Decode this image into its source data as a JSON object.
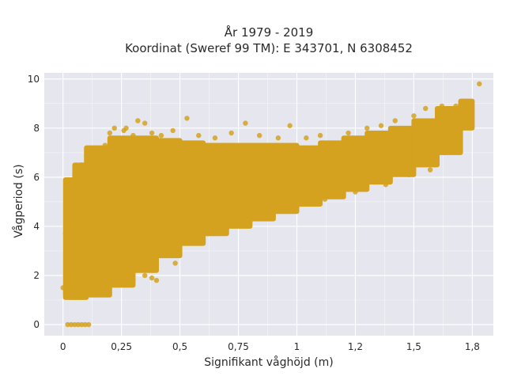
{
  "chart_data": {
    "type": "scatter",
    "title_line1": "År 1979 - 2019",
    "title_line2": "Koordinat (Sweref 99 TM): E 343701, N 6308452",
    "xlabel": "Signifikant våghöjd (m)",
    "ylabel": "Vågperiod (s)",
    "xlim": [
      -0.08,
      1.84
    ],
    "ylim": [
      -0.45,
      10.25
    ],
    "x_ticks": [
      {
        "value": 0,
        "label": "0"
      },
      {
        "value": 0.25,
        "label": "0,25"
      },
      {
        "value": 0.5,
        "label": "0,5"
      },
      {
        "value": 0.75,
        "label": "0,75"
      },
      {
        "value": 1,
        "label": "1"
      },
      {
        "value": 1.25,
        "label": "1,2"
      },
      {
        "value": 1.5,
        "label": "1,5"
      },
      {
        "value": 1.75,
        "label": "1,8"
      }
    ],
    "y_ticks": [
      {
        "value": 0,
        "label": "0"
      },
      {
        "value": 2,
        "label": "2"
      },
      {
        "value": 4,
        "label": "4"
      },
      {
        "value": 6,
        "label": "6"
      },
      {
        "value": 8,
        "label": "8"
      },
      {
        "value": 10,
        "label": "10"
      }
    ],
    "grid": true,
    "marker_color": "#D4A21F",
    "plot_bg": "#E5E6EE",
    "density_bands": [
      {
        "x": [
          0.01,
          0.05
        ],
        "y_min": 1.1,
        "y_max": 5.9
      },
      {
        "x": [
          0.05,
          0.1
        ],
        "y_min": 1.1,
        "y_max": 6.5
      },
      {
        "x": [
          0.1,
          0.2
        ],
        "y_min": 1.2,
        "y_max": 7.2
      },
      {
        "x": [
          0.2,
          0.3
        ],
        "y_min": 1.6,
        "y_max": 7.6
      },
      {
        "x": [
          0.3,
          0.4
        ],
        "y_min": 2.2,
        "y_max": 7.6
      },
      {
        "x": [
          0.4,
          0.5
        ],
        "y_min": 2.8,
        "y_max": 7.5
      },
      {
        "x": [
          0.5,
          0.6
        ],
        "y_min": 3.3,
        "y_max": 7.4
      },
      {
        "x": [
          0.6,
          0.7
        ],
        "y_min": 3.7,
        "y_max": 7.3
      },
      {
        "x": [
          0.7,
          0.8
        ],
        "y_min": 4.0,
        "y_max": 7.3
      },
      {
        "x": [
          0.8,
          0.9
        ],
        "y_min": 4.3,
        "y_max": 7.3
      },
      {
        "x": [
          0.9,
          1.0
        ],
        "y_min": 4.6,
        "y_max": 7.3
      },
      {
        "x": [
          1.0,
          1.1
        ],
        "y_min": 4.9,
        "y_max": 7.2
      },
      {
        "x": [
          1.1,
          1.2
        ],
        "y_min": 5.2,
        "y_max": 7.4
      },
      {
        "x": [
          1.2,
          1.3
        ],
        "y_min": 5.5,
        "y_max": 7.6
      },
      {
        "x": [
          1.3,
          1.4
        ],
        "y_min": 5.8,
        "y_max": 7.8
      },
      {
        "x": [
          1.4,
          1.5
        ],
        "y_min": 6.1,
        "y_max": 8.0
      },
      {
        "x": [
          1.5,
          1.6
        ],
        "y_min": 6.5,
        "y_max": 8.3
      },
      {
        "x": [
          1.6,
          1.7
        ],
        "y_min": 7.0,
        "y_max": 8.8
      },
      {
        "x": [
          1.7,
          1.75
        ],
        "y_min": 8.0,
        "y_max": 9.1
      }
    ],
    "points": [
      {
        "x": 0.02,
        "y": 0
      },
      {
        "x": 0.035,
        "y": 0
      },
      {
        "x": 0.05,
        "y": 0
      },
      {
        "x": 0.065,
        "y": 0
      },
      {
        "x": 0.08,
        "y": 0
      },
      {
        "x": 0.095,
        "y": 0
      },
      {
        "x": 0.11,
        "y": 0
      },
      {
        "x": 0.0,
        "y": 1.5
      },
      {
        "x": 0.01,
        "y": 1.3
      },
      {
        "x": 0.01,
        "y": 3.7
      },
      {
        "x": 0.02,
        "y": 4.8
      },
      {
        "x": 0.06,
        "y": 6.2
      },
      {
        "x": 0.08,
        "y": 6.5
      },
      {
        "x": 0.12,
        "y": 6.7
      },
      {
        "x": 0.18,
        "y": 7.3
      },
      {
        "x": 0.2,
        "y": 7.8
      },
      {
        "x": 0.22,
        "y": 8.0
      },
      {
        "x": 0.26,
        "y": 7.9
      },
      {
        "x": 0.27,
        "y": 8.0
      },
      {
        "x": 0.3,
        "y": 7.7
      },
      {
        "x": 0.32,
        "y": 8.3
      },
      {
        "x": 0.35,
        "y": 8.2
      },
      {
        "x": 0.38,
        "y": 7.8
      },
      {
        "x": 0.42,
        "y": 7.7
      },
      {
        "x": 0.47,
        "y": 7.9
      },
      {
        "x": 0.53,
        "y": 8.4
      },
      {
        "x": 0.58,
        "y": 7.7
      },
      {
        "x": 0.65,
        "y": 7.6
      },
      {
        "x": 0.72,
        "y": 7.8
      },
      {
        "x": 0.78,
        "y": 8.2
      },
      {
        "x": 0.84,
        "y": 7.7
      },
      {
        "x": 0.92,
        "y": 7.6
      },
      {
        "x": 0.97,
        "y": 8.1
      },
      {
        "x": 1.04,
        "y": 7.6
      },
      {
        "x": 1.1,
        "y": 7.7
      },
      {
        "x": 1.22,
        "y": 7.8
      },
      {
        "x": 1.3,
        "y": 8.0
      },
      {
        "x": 1.36,
        "y": 8.1
      },
      {
        "x": 1.42,
        "y": 8.3
      },
      {
        "x": 1.5,
        "y": 8.5
      },
      {
        "x": 1.55,
        "y": 8.8
      },
      {
        "x": 1.62,
        "y": 8.9
      },
      {
        "x": 1.68,
        "y": 8.9
      },
      {
        "x": 1.72,
        "y": 8.9
      },
      {
        "x": 1.74,
        "y": 9.0
      },
      {
        "x": 1.78,
        "y": 9.8
      },
      {
        "x": 0.4,
        "y": 1.8
      },
      {
        "x": 0.38,
        "y": 1.9
      },
      {
        "x": 0.3,
        "y": 1.8
      },
      {
        "x": 0.27,
        "y": 1.7
      },
      {
        "x": 0.48,
        "y": 2.5
      },
      {
        "x": 0.55,
        "y": 3.4
      },
      {
        "x": 0.62,
        "y": 3.7
      },
      {
        "x": 0.7,
        "y": 3.9
      },
      {
        "x": 0.8,
        "y": 4.2
      },
      {
        "x": 0.9,
        "y": 4.6
      },
      {
        "x": 1.0,
        "y": 4.8
      },
      {
        "x": 1.12,
        "y": 5.1
      },
      {
        "x": 1.25,
        "y": 5.4
      },
      {
        "x": 1.38,
        "y": 5.7
      },
      {
        "x": 1.48,
        "y": 6.1
      },
      {
        "x": 1.57,
        "y": 6.3
      },
      {
        "x": 1.63,
        "y": 7.0
      },
      {
        "x": 0.55,
        "y": 3.6
      },
      {
        "x": 0.58,
        "y": 3.5
      },
      {
        "x": 0.35,
        "y": 2.0
      }
    ]
  }
}
